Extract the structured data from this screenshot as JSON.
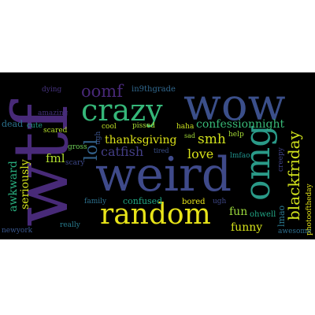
{
  "words": [
    {
      "text": "wtf",
      "color": "#482a78",
      "rotated": true
    },
    {
      "text": "wow",
      "color": "#3b4f8a",
      "rotated": false
    },
    {
      "text": "weird",
      "color": "#3f4a8a",
      "rotated": false
    },
    {
      "text": "crazy",
      "color": "#35b779",
      "rotated": false
    },
    {
      "text": "random",
      "color": "#e8e419",
      "rotated": false
    },
    {
      "text": "omg",
      "color": "#2a9a88",
      "rotated": true
    },
    {
      "text": "oomf",
      "color": "#482878",
      "rotated": false
    },
    {
      "text": "in9thgrade",
      "color": "#31688e",
      "rotated": false
    },
    {
      "text": "dying",
      "color": "#46327e",
      "rotated": false
    },
    {
      "text": "amazing",
      "color": "#45327d",
      "rotated": false
    },
    {
      "text": "dead",
      "color": "#2c728e",
      "rotated": false
    },
    {
      "text": "cute",
      "color": "#1f9e89",
      "rotated": false
    },
    {
      "text": "scared",
      "color": "#b5de2b",
      "rotated": false
    },
    {
      "text": "cool",
      "color": "#bddf26",
      "rotated": false
    },
    {
      "text": "pissed",
      "color": "#a8db34",
      "rotated": false
    },
    {
      "text": "haha",
      "color": "#cae11f",
      "rotated": false
    },
    {
      "text": "sad",
      "color": "#a2da37",
      "rotated": false
    },
    {
      "text": "ugh",
      "color": "#3b528b",
      "rotated": true
    },
    {
      "text": "lol",
      "color": "#33638d",
      "rotated": true
    },
    {
      "text": "confessionnight",
      "color": "#38b977",
      "rotated": false
    },
    {
      "text": "thanksgiving",
      "color": "#dde318",
      "rotated": false
    },
    {
      "text": "smh",
      "color": "#d0e11c",
      "rotated": false
    },
    {
      "text": "help",
      "color": "#a5db36",
      "rotated": false
    },
    {
      "text": "lmfao",
      "color": "#20928c",
      "rotated": false
    },
    {
      "text": "catfish",
      "color": "#433e85",
      "rotated": false
    },
    {
      "text": "tired",
      "color": "#3b518b",
      "rotated": false
    },
    {
      "text": "love",
      "color": "#d8e219",
      "rotated": false
    },
    {
      "text": "gross",
      "color": "#6ece58",
      "rotated": false
    },
    {
      "text": "scary",
      "color": "#3e4989",
      "rotated": false
    },
    {
      "text": "fml",
      "color": "#b0dd2f",
      "rotated": false
    },
    {
      "text": "awkward",
      "color": "#29af7f",
      "rotated": true
    },
    {
      "text": "seriously",
      "color": "#d2e21b",
      "rotated": true
    },
    {
      "text": "blackfriday",
      "color": "#d0e11c",
      "rotated": true
    },
    {
      "text": "creepy",
      "color": "#414487",
      "rotated": true
    },
    {
      "text": "photooftheday",
      "color": "#e5e419",
      "rotated": true
    },
    {
      "text": "family",
      "color": "#2d718e",
      "rotated": false
    },
    {
      "text": "confused",
      "color": "#22a884",
      "rotated": false
    },
    {
      "text": "bored",
      "color": "#e7e419",
      "rotated": false
    },
    {
      "text": "ugh",
      "color": "#3f4889",
      "rotated": false
    },
    {
      "text": "fun",
      "color": "#9bd93c",
      "rotated": false
    },
    {
      "text": "ohwell",
      "color": "#21a685",
      "rotated": false
    },
    {
      "text": "lmao",
      "color": "#2a788e",
      "rotated": true
    },
    {
      "text": "funny",
      "color": "#d5e21a",
      "rotated": false
    },
    {
      "text": "awesome",
      "color": "#2e6e8e",
      "rotated": false
    },
    {
      "text": "really",
      "color": "#287c8e",
      "rotated": false
    },
    {
      "text": "newyork",
      "color": "#39568c",
      "rotated": false
    }
  ]
}
